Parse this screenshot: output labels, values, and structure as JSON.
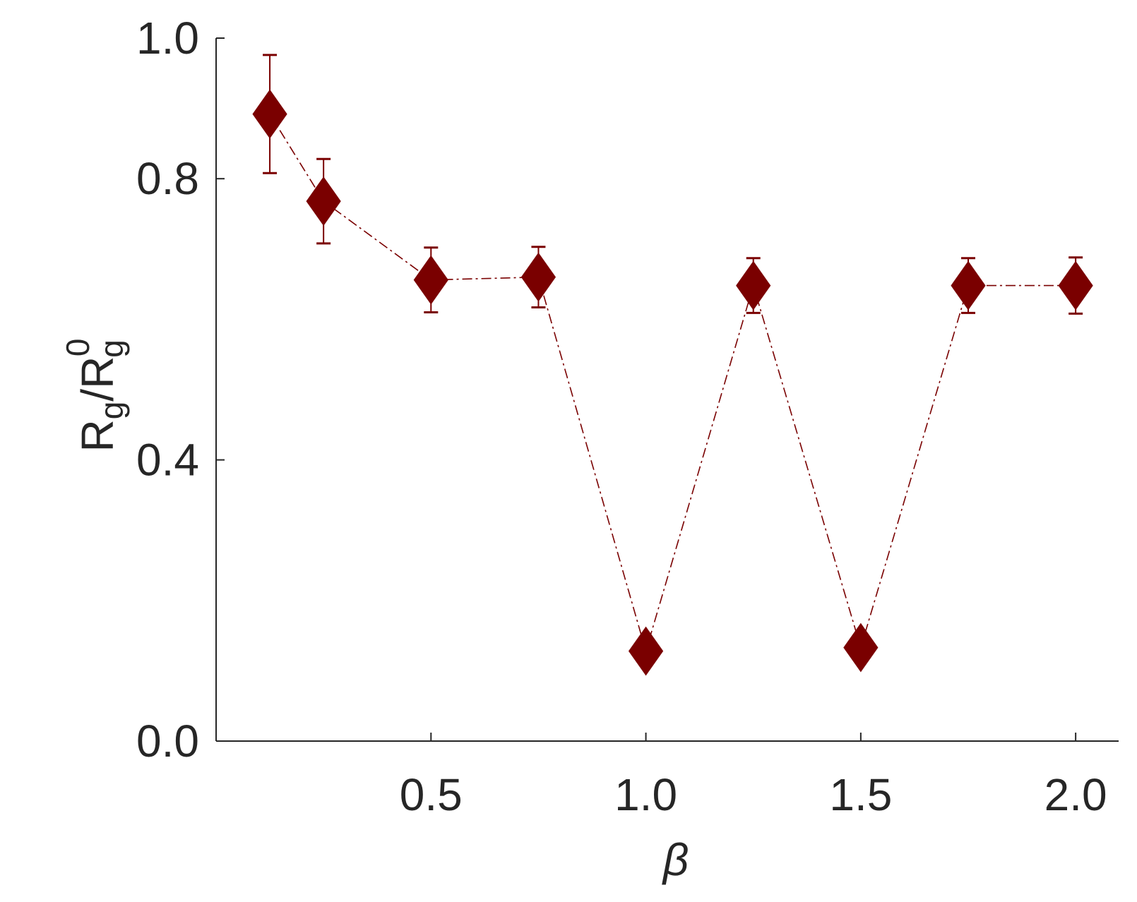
{
  "chart_data": {
    "type": "scatter",
    "xlabel": "β",
    "ylabel": {
      "main1": "R",
      "sub1": "g",
      "slash": "/R",
      "sub2": "g",
      "sup2": "0"
    },
    "xlim": [
      0.0,
      2.1
    ],
    "ylim": [
      0.0,
      1.0
    ],
    "x_ticks": [
      0.5,
      1.0,
      1.5,
      2.0
    ],
    "x_tick_labels": [
      "0.5",
      "1.0",
      "1.5",
      "2.0"
    ],
    "y_ticks": [
      0.0,
      0.4,
      0.8,
      1.0
    ],
    "y_tick_labels": [
      "0.0",
      "0.4",
      "0.8",
      "1.0"
    ],
    "grid": false,
    "marker": "diamond",
    "line_style": "dash-dot",
    "color": "#7a0000",
    "series": [
      {
        "x": [
          0.125,
          0.25,
          0.5,
          0.75,
          1.0,
          1.25,
          1.5,
          1.75,
          2.0
        ],
        "y": [
          0.892,
          0.768,
          0.656,
          0.66,
          0.128,
          0.648,
          0.133,
          0.648,
          0.648
        ],
        "err": [
          0.084,
          0.06,
          0.046,
          0.043,
          0.0,
          0.039,
          0.0,
          0.039,
          0.04
        ]
      }
    ]
  }
}
